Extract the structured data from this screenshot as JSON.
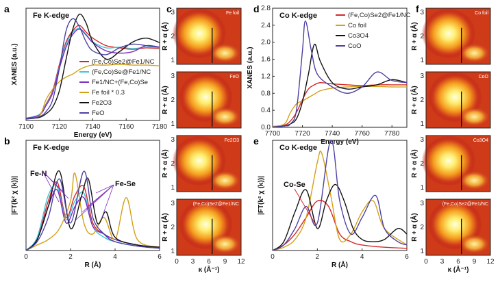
{
  "chart_data": [
    {
      "panel": "a",
      "type": "line",
      "title": "Fe K-edge",
      "xlabel": "Energy (eV)",
      "ylabel": "XANES (a.u.)",
      "xlim": [
        7100,
        7180
      ],
      "ylim": [
        0,
        1.5
      ],
      "xticks": [
        "7100",
        "7120",
        "7140",
        "7160",
        "7180"
      ],
      "series": [
        {
          "name": "(Fe,Co)Se2@Fe1/NC",
          "color": "#d62728",
          "x": [
            7100,
            7108,
            7112,
            7116,
            7120,
            7124,
            7128,
            7132,
            7136,
            7140,
            7148,
            7156,
            7164,
            7172,
            7180
          ],
          "y": [
            0.03,
            0.08,
            0.22,
            0.4,
            0.75,
            1.05,
            1.2,
            1.27,
            1.18,
            1.1,
            1.0,
            0.97,
            0.95,
            0.97,
            0.96
          ]
        },
        {
          "name": "(Fe,Co)Se@Fe1/NC",
          "color": "#3ec6d6",
          "x": [
            7100,
            7108,
            7112,
            7116,
            7120,
            7124,
            7128,
            7132,
            7136,
            7140,
            7148,
            7156,
            7164,
            7172,
            7180
          ],
          "y": [
            0.03,
            0.08,
            0.21,
            0.38,
            0.72,
            1.02,
            1.18,
            1.23,
            1.15,
            1.05,
            0.97,
            0.98,
            0.96,
            0.98,
            0.97
          ]
        },
        {
          "name": "Fe1/NC+(Fe,Co)Se",
          "color": "#7b2cbf",
          "x": [
            7100,
            7108,
            7112,
            7116,
            7120,
            7124,
            7128,
            7132,
            7136,
            7140,
            7148,
            7156,
            7164,
            7172,
            7180
          ],
          "y": [
            0.03,
            0.07,
            0.2,
            0.37,
            0.7,
            0.98,
            1.15,
            1.22,
            1.14,
            1.04,
            0.93,
            0.9,
            0.92,
            1.0,
            0.98
          ]
        },
        {
          "name": "Fe foil * 0.3",
          "color": "#d4a017",
          "x": [
            7100,
            7108,
            7112,
            7116,
            7120,
            7124,
            7128,
            7132,
            7136,
            7140,
            7148,
            7156,
            7164,
            7172,
            7180
          ],
          "y": [
            0.02,
            0.06,
            0.28,
            0.42,
            0.52,
            0.58,
            0.62,
            0.68,
            0.72,
            0.74,
            0.74,
            0.75,
            0.74,
            0.74,
            0.73
          ]
        },
        {
          "name": "Fe2O3",
          "color": "#111111",
          "x": [
            7100,
            7108,
            7112,
            7116,
            7120,
            7124,
            7128,
            7132,
            7136,
            7140,
            7148,
            7156,
            7164,
            7172,
            7180
          ],
          "y": [
            0.02,
            0.04,
            0.09,
            0.18,
            0.4,
            0.82,
            1.22,
            1.42,
            1.3,
            1.05,
            0.82,
            0.92,
            1.05,
            1.1,
            1.04
          ]
        },
        {
          "name": "FeO",
          "color": "#4b3fa3",
          "x": [
            7100,
            7108,
            7112,
            7116,
            7120,
            7124,
            7128,
            7132,
            7136,
            7140,
            7148,
            7156,
            7164,
            7172,
            7180
          ],
          "y": [
            0.02,
            0.05,
            0.12,
            0.28,
            0.7,
            1.2,
            1.36,
            1.25,
            1.05,
            0.93,
            0.88,
            0.97,
            1.02,
            1.0,
            0.98
          ]
        }
      ]
    },
    {
      "panel": "b",
      "type": "line",
      "title": "Fe K-edge",
      "xlabel": "R (Å)",
      "ylabel": "|FT(k² χ (k))|",
      "xlim": [
        0,
        6
      ],
      "ylim": [
        0,
        1
      ],
      "xticks": [
        "0",
        "2",
        "4",
        "6"
      ],
      "annotations": [
        "Fe-N",
        "Fe-Se"
      ],
      "series": [
        {
          "name": "(Fe,Co)Se2@Fe1/NC",
          "color": "#d62728",
          "x": [
            0,
            0.5,
            1.0,
            1.4,
            1.8,
            2.2,
            2.6,
            3.0,
            3.5,
            4.0,
            5.0,
            6.0
          ],
          "y": [
            0,
            0.1,
            0.45,
            0.62,
            0.3,
            0.5,
            0.58,
            0.25,
            0.15,
            0.1,
            0.05,
            0.03
          ]
        },
        {
          "name": "(Fe,Co)Se@Fe1/NC",
          "color": "#3ec6d6",
          "x": [
            0,
            0.5,
            1.0,
            1.4,
            1.8,
            2.2,
            2.6,
            3.0,
            3.5,
            4.0,
            5.0,
            6.0
          ],
          "y": [
            0,
            0.12,
            0.5,
            0.58,
            0.28,
            0.45,
            0.52,
            0.22,
            0.12,
            0.08,
            0.04,
            0.02
          ]
        },
        {
          "name": "Fe1/NC+(Fe,Co)Se",
          "color": "#7b2cbf",
          "x": [
            0,
            0.5,
            1.0,
            1.4,
            1.8,
            2.2,
            2.6,
            3.0,
            3.5,
            4.0,
            5.0,
            6.0
          ],
          "y": [
            0,
            0.1,
            0.4,
            0.55,
            0.25,
            0.4,
            0.48,
            0.22,
            0.15,
            0.1,
            0.05,
            0.03
          ]
        },
        {
          "name": "Fe foil * 0.3",
          "color": "#d4a017",
          "x": [
            0,
            0.5,
            1.0,
            1.5,
            2.0,
            2.2,
            2.6,
            3.0,
            3.5,
            4.0,
            4.5,
            5.0,
            6.0
          ],
          "y": [
            0,
            0.05,
            0.1,
            0.2,
            0.45,
            0.7,
            0.25,
            0.15,
            0.3,
            0.1,
            0.48,
            0.1,
            0.03
          ]
        },
        {
          "name": "Fe2O3",
          "color": "#111111",
          "x": [
            0,
            0.5,
            1.0,
            1.5,
            2.0,
            2.5,
            2.8,
            3.2,
            3.6,
            4.0,
            5.0,
            6.0
          ],
          "y": [
            0,
            0.1,
            0.4,
            0.72,
            0.2,
            0.5,
            0.65,
            0.25,
            0.35,
            0.12,
            0.05,
            0.03
          ]
        },
        {
          "name": "FeO",
          "color": "#4b3fa3",
          "x": [
            0,
            0.5,
            1.0,
            1.5,
            2.0,
            2.6,
            3.0,
            3.5,
            4.0,
            5.0,
            6.0
          ],
          "y": [
            0,
            0.08,
            0.3,
            0.65,
            0.25,
            0.72,
            0.3,
            0.15,
            0.08,
            0.04,
            0.02
          ]
        }
      ]
    },
    {
      "panel": "c",
      "type": "heatmap",
      "xlabel": "κ (Å⁻¹)",
      "ylabel": "R + α (Å)",
      "xticks": [
        "0",
        "3",
        "6",
        "9",
        "12"
      ],
      "yticks": [
        "1",
        "2",
        "3"
      ],
      "maps": [
        "Fe foil",
        "FeO",
        "Fe2O3",
        "(Fe,Co)Se2@Fe1/NC"
      ]
    },
    {
      "panel": "d",
      "type": "line",
      "title": "Co K-edge",
      "xlabel": "Energy (eV)",
      "ylabel": "XANES (a.u.)",
      "xlim": [
        7700,
        7790
      ],
      "ylim": [
        0,
        2.8
      ],
      "xticks": [
        "7700",
        "7720",
        "7740",
        "7760",
        "7780"
      ],
      "yticks": [
        "0.0",
        "0.4",
        "0.8",
        "1.2",
        "1.6",
        "2.0",
        "2.4",
        "2.8"
      ],
      "series": [
        {
          "name": "(Fe,Co)Se2@Fe1/NC",
          "color": "#d62728",
          "x": [
            7700,
            7708,
            7712,
            7716,
            7720,
            7724,
            7728,
            7732,
            7740,
            7750,
            7760,
            7770,
            7780,
            7790
          ],
          "y": [
            0.02,
            0.05,
            0.15,
            0.35,
            0.65,
            0.9,
            1.0,
            1.05,
            1.02,
            1.0,
            0.98,
            1.0,
            1.0,
            1.0
          ]
        },
        {
          "name": "Co foil",
          "color": "#d4a017",
          "x": [
            7700,
            7708,
            7712,
            7716,
            7720,
            7724,
            7728,
            7732,
            7740,
            7750,
            7760,
            7770,
            7780,
            7790
          ],
          "y": [
            0.02,
            0.08,
            0.35,
            0.55,
            0.62,
            0.7,
            0.78,
            0.86,
            0.92,
            0.95,
            0.96,
            0.96,
            0.95,
            0.95
          ]
        },
        {
          "name": "Co3O4",
          "color": "#111111",
          "x": [
            7700,
            7708,
            7712,
            7716,
            7720,
            7724,
            7728,
            7732,
            7740,
            7750,
            7760,
            7770,
            7780,
            7790
          ],
          "y": [
            0.01,
            0.03,
            0.08,
            0.2,
            0.6,
            1.25,
            1.95,
            1.55,
            1.05,
            0.9,
            0.95,
            1.0,
            1.12,
            1.05
          ]
        },
        {
          "name": "CoO",
          "color": "#4b3fa3",
          "x": [
            7700,
            7708,
            7712,
            7716,
            7720,
            7722,
            7726,
            7730,
            7740,
            7750,
            7760,
            7770,
            7780,
            7790
          ],
          "y": [
            0.01,
            0.03,
            0.08,
            0.4,
            1.8,
            2.5,
            1.8,
            1.25,
            0.95,
            0.8,
            0.95,
            1.3,
            1.1,
            1.05
          ]
        }
      ]
    },
    {
      "panel": "e",
      "type": "line",
      "title": "Co K-edge",
      "xlabel": "R (Å)",
      "ylabel": "|FT(k² χ (k))|",
      "xlim": [
        0,
        6
      ],
      "ylim": [
        0,
        1
      ],
      "xticks": [
        "0",
        "2",
        "4",
        "6"
      ],
      "annotations": [
        "Co-Se"
      ],
      "series": [
        {
          "name": "(Fe,Co)Se2@Fe1/NC",
          "color": "#d62728",
          "x": [
            0,
            0.5,
            1.0,
            1.5,
            2.0,
            2.5,
            3.0,
            3.5,
            4.0,
            5.0,
            6.0
          ],
          "y": [
            0,
            0.05,
            0.15,
            0.3,
            0.45,
            0.4,
            0.15,
            0.08,
            0.05,
            0.03,
            0.02
          ]
        },
        {
          "name": "Co foil",
          "color": "#d4a017",
          "x": [
            0,
            0.5,
            1.0,
            1.5,
            2.0,
            2.2,
            2.6,
            3.0,
            3.5,
            4.0,
            4.5,
            5.0,
            6.0
          ],
          "y": [
            0,
            0.03,
            0.1,
            0.3,
            0.8,
            0.88,
            0.5,
            0.1,
            0.15,
            0.35,
            0.45,
            0.2,
            0.05
          ]
        },
        {
          "name": "Co3O4",
          "color": "#111111",
          "x": [
            0,
            0.5,
            1.0,
            1.5,
            2.0,
            2.4,
            2.8,
            3.2,
            3.6,
            4.0,
            4.5,
            5.0,
            5.6,
            6.0
          ],
          "y": [
            0,
            0.08,
            0.35,
            0.55,
            0.2,
            0.45,
            0.6,
            0.45,
            0.2,
            0.1,
            0.08,
            0.1,
            0.2,
            0.15
          ]
        },
        {
          "name": "CoO",
          "color": "#4b3fa3",
          "x": [
            0,
            0.5,
            1.0,
            1.5,
            2.0,
            2.6,
            3.0,
            3.5,
            4.0,
            4.6,
            5.0,
            5.6,
            6.0
          ],
          "y": [
            0,
            0.05,
            0.2,
            0.4,
            0.25,
            1.0,
            0.45,
            0.15,
            0.3,
            0.5,
            0.2,
            0.08,
            0.05
          ]
        }
      ]
    },
    {
      "panel": "f",
      "type": "heatmap",
      "xlabel": "κ (Å⁻¹)",
      "ylabel": "R + α (Å)",
      "xticks": [
        "0",
        "3",
        "6",
        "9",
        "12"
      ],
      "yticks": [
        "1",
        "2",
        "3"
      ],
      "maps": [
        "Co foil",
        "CoO",
        "Co3O4",
        "(Fe,Co)Se2@Fe1/NC"
      ]
    }
  ],
  "labels": {
    "a": "a",
    "b": "b",
    "c": "c",
    "d": "d",
    "e": "e",
    "f": "f"
  }
}
